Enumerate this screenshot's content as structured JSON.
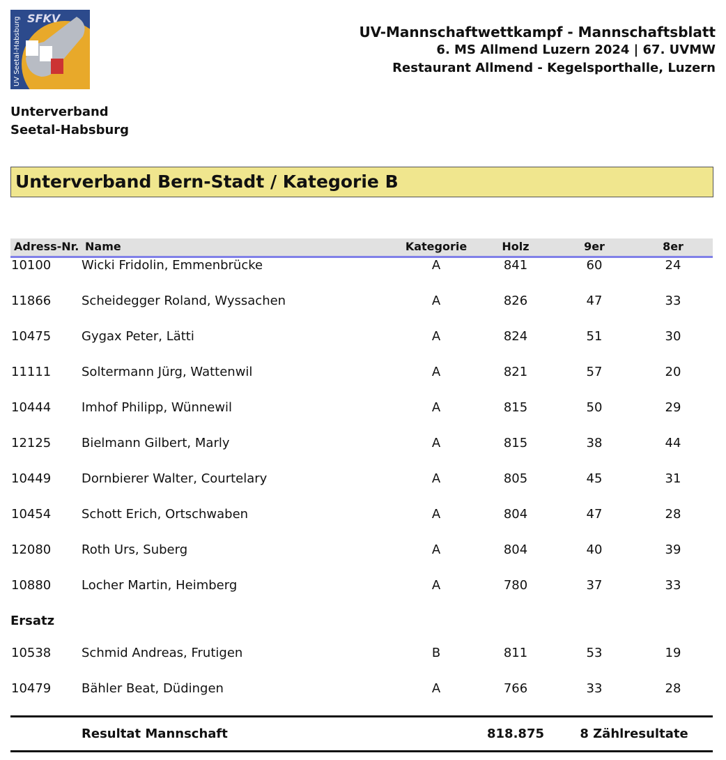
{
  "header": {
    "logo": {
      "title": "SFKV",
      "subtitle": "UV Seetal-Habsburg"
    },
    "lines": [
      "UV-Mannschaftwettkampf - Mannschaftsblatt",
      "6. MS Allmend Luzern 2024 | 67. UVMW",
      "Restaurant Allmend - Kegelsporthalle, Luzern"
    ]
  },
  "organization": [
    "Unterverband",
    "Seetal-Habsburg"
  ],
  "section_title": "Unterverband Bern-Stadt / Kategorie B",
  "table": {
    "columns": [
      "Adress-Nr.",
      "Name",
      "Kategorie",
      "Holz",
      "9er",
      "8er"
    ],
    "rows": [
      [
        10100,
        "Wicki Fridolin, Emmenbrücke",
        "A",
        841,
        60,
        24
      ],
      [
        11866,
        "Scheidegger Roland, Wyssachen",
        "A",
        826,
        47,
        33
      ],
      [
        10475,
        "Gygax Peter, Lätti",
        "A",
        824,
        51,
        30
      ],
      [
        11111,
        "Soltermann Jürg, Wattenwil",
        "A",
        821,
        57,
        20
      ],
      [
        10444,
        "Imhof Philipp, Wünnewil",
        "A",
        815,
        50,
        29
      ],
      [
        12125,
        "Bielmann Gilbert, Marly",
        "A",
        815,
        38,
        44
      ],
      [
        10449,
        "Dornbierer Walter, Courtelary",
        "A",
        805,
        45,
        31
      ],
      [
        10454,
        "Schott Erich, Ortschwaben",
        "A",
        804,
        47,
        28
      ],
      [
        12080,
        "Roth Urs, Suberg",
        "A",
        804,
        40,
        39
      ],
      [
        10880,
        "Locher Martin, Heimberg",
        "A",
        780,
        37,
        33
      ]
    ],
    "substitute_label": "Ersatz",
    "substitutes": [
      [
        10538,
        "Schmid Andreas, Frutigen",
        "B",
        811,
        53,
        19
      ],
      [
        10479,
        "Bähler Beat, Düdingen",
        "A",
        766,
        33,
        28
      ]
    ],
    "total": {
      "label": "Resultat Mannschaft",
      "value": 818.875,
      "note": "8 Zählresultate"
    }
  }
}
